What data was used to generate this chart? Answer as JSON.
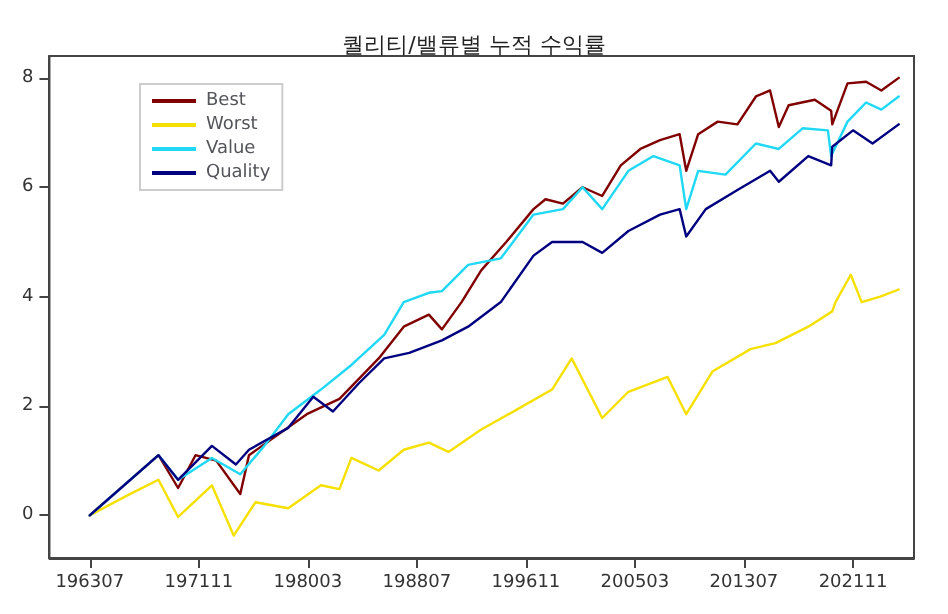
{
  "chart_data": {
    "type": "line",
    "title": "퀄리티/밸류별 누적 수익률",
    "xlim": [
      "1960-06",
      "2026-07"
    ],
    "ylim": [
      -0.78,
      8.4
    ],
    "xticks": [
      {
        "value": "1963-07",
        "label": "196307"
      },
      {
        "value": "1971-11",
        "label": "197111"
      },
      {
        "value": "1980-03",
        "label": "198003"
      },
      {
        "value": "1988-07",
        "label": "198807"
      },
      {
        "value": "1996-11",
        "label": "199611"
      },
      {
        "value": "2005-03",
        "label": "200503"
      },
      {
        "value": "2013-07",
        "label": "201307"
      },
      {
        "value": "2021-11",
        "label": "202111"
      }
    ],
    "yticks": [
      0,
      2,
      4,
      6,
      8
    ],
    "grid": false,
    "legend": "top left",
    "marker": "none",
    "line_style": "solid",
    "series": [
      {
        "name": "Best",
        "color": "#800000",
        "x": [
          "1963-07",
          "1968-10",
          "1970-04",
          "1971-08",
          "1973-03",
          "1975-01",
          "1975-09",
          "1980-02",
          "1982-08",
          "1985-08",
          "1987-07",
          "1989-06",
          "1990-06",
          "1991-12",
          "1993-06",
          "1995-05",
          "1997-06",
          "1998-05",
          "1999-09",
          "2001-03",
          "2002-09",
          "2004-02",
          "2005-08",
          "2007-02",
          "2008-08",
          "2009-02",
          "2010-01",
          "2011-07",
          "2013-01",
          "2014-06",
          "2015-07",
          "2016-03",
          "2016-12",
          "2018-12",
          "2020-03",
          "2020-04",
          "2021-06",
          "2022-11",
          "2024-01",
          "2025-05"
        ],
        "values": [
          0,
          1.1,
          0.5,
          1.1,
          1.0,
          0.39,
          1.1,
          1.85,
          2.13,
          2.87,
          3.45,
          3.67,
          3.4,
          3.9,
          4.48,
          5.0,
          5.6,
          5.78,
          5.7,
          6.0,
          5.84,
          6.4,
          6.7,
          6.86,
          6.97,
          6.3,
          6.97,
          7.2,
          7.15,
          7.66,
          7.77,
          7.1,
          7.5,
          7.6,
          7.4,
          7.15,
          7.9,
          7.93,
          7.77,
          8.0
        ]
      },
      {
        "name": "Worst",
        "color": "#f5e000",
        "x": [
          "1963-07",
          "1966-06",
          "1968-10",
          "1970-04",
          "1972-11",
          "1974-07",
          "1976-03",
          "1978-09",
          "1981-03",
          "1982-08",
          "1983-07",
          "1985-08",
          "1987-07",
          "1989-06",
          "1990-12",
          "1993-06",
          "1996-05",
          "1998-11",
          "2000-05",
          "2002-09",
          "2004-09",
          "2007-09",
          "2009-02",
          "2011-02",
          "2014-01",
          "2015-12",
          "2018-06",
          "2020-04",
          "2020-07",
          "2021-09",
          "2022-07",
          "2023-12",
          "2025-05"
        ],
        "values": [
          0,
          0.37,
          0.65,
          -0.03,
          0.55,
          -0.37,
          0.24,
          0.13,
          0.55,
          0.48,
          1.05,
          0.82,
          1.2,
          1.33,
          1.16,
          1.57,
          1.96,
          2.3,
          2.87,
          1.78,
          2.26,
          2.53,
          1.85,
          2.63,
          3.04,
          3.15,
          3.45,
          3.73,
          3.9,
          4.4,
          3.9,
          4.0,
          4.13
        ]
      },
      {
        "name": "Value",
        "color": "#1ed8f5",
        "x": [
          "1963-07",
          "1968-10",
          "1970-04",
          "1972-11",
          "1975-01",
          "1976-11",
          "1978-09",
          "1981-03",
          "1983-07",
          "1986-01",
          "1987-07",
          "1989-06",
          "1990-06",
          "1992-06",
          "1994-12",
          "1997-06",
          "1999-09",
          "2001-03",
          "2002-09",
          "2004-09",
          "2006-08",
          "2008-08",
          "2009-02",
          "2010-01",
          "2012-02",
          "2014-06",
          "2016-03",
          "2018-01",
          "2019-12",
          "2020-03",
          "2021-06",
          "2022-11",
          "2024-01",
          "2025-05"
        ],
        "values": [
          0,
          1.1,
          0.65,
          1.05,
          0.75,
          1.27,
          1.85,
          2.3,
          2.75,
          3.3,
          3.9,
          4.07,
          4.1,
          4.58,
          4.7,
          5.5,
          5.6,
          6.0,
          5.6,
          6.3,
          6.57,
          6.4,
          5.6,
          6.3,
          6.23,
          6.8,
          6.7,
          7.08,
          7.04,
          6.57,
          7.2,
          7.55,
          7.42,
          7.66
        ]
      },
      {
        "name": "Quality",
        "color": "#000080",
        "x": [
          "1963-07",
          "1968-10",
          "1970-04",
          "1972-11",
          "1974-09",
          "1975-09",
          "1978-09",
          "1980-08",
          "1982-02",
          "1984-02",
          "1986-01",
          "1987-12",
          "1990-06",
          "1992-06",
          "1994-12",
          "1997-06",
          "1998-11",
          "2001-03",
          "2002-09",
          "2004-09",
          "2007-02",
          "2008-08",
          "2009-02",
          "2010-08",
          "2013-01",
          "2015-07",
          "2016-03",
          "2018-06",
          "2020-03",
          "2020-04",
          "2021-11",
          "2023-05",
          "2025-05"
        ],
        "values": [
          0,
          1.1,
          0.65,
          1.27,
          0.93,
          1.2,
          1.6,
          2.17,
          1.9,
          2.42,
          2.87,
          2.97,
          3.2,
          3.45,
          3.9,
          4.75,
          5.0,
          5.0,
          4.8,
          5.2,
          5.5,
          5.6,
          5.1,
          5.6,
          5.95,
          6.3,
          6.1,
          6.57,
          6.4,
          6.74,
          7.04,
          6.8,
          7.15
        ]
      }
    ]
  }
}
